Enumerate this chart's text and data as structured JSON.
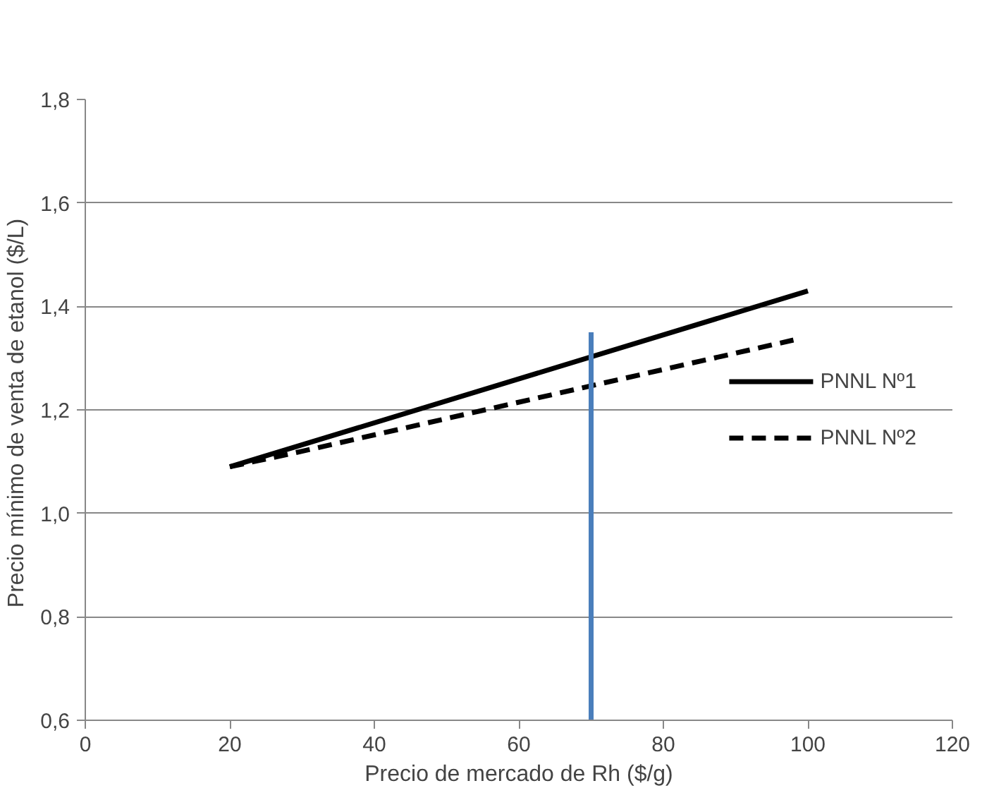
{
  "chart_data": {
    "type": "line",
    "xlabel": "Precio de mercado de Rh ($/g)",
    "ylabel": "Precio mínimo de venta  de etanol ($/L)",
    "xlim": [
      0,
      120
    ],
    "xticks": [
      0,
      20,
      40,
      60,
      80,
      100,
      120
    ],
    "ylim": [
      0.6,
      1.8
    ],
    "yticks": [
      {
        "value": 0.6,
        "label": "0,6"
      },
      {
        "value": 0.8,
        "label": "0,8"
      },
      {
        "value": 1.0,
        "label": "1,0"
      },
      {
        "value": 1.2,
        "label": "1,2"
      },
      {
        "value": 1.4,
        "label": "1,4"
      },
      {
        "value": 1.6,
        "label": "1,6"
      },
      {
        "value": 1.8,
        "label": "1,8"
      }
    ],
    "grid": "y",
    "legend": "right",
    "marker": "none",
    "series": [
      {
        "name": "PNNL Nº1",
        "color": "#000000",
        "line_style": "solid",
        "x": [
          20,
          100
        ],
        "values": [
          1.09,
          1.43
        ]
      },
      {
        "name": "PNNL Nº2",
        "color": "#000000",
        "line_style": "dashed",
        "x": [
          20,
          30,
          98
        ],
        "values": [
          1.09,
          1.12,
          1.335
        ]
      },
      {
        "color": "#4a7ebb",
        "line_style": "solid",
        "x": [
          70,
          70
        ],
        "values": [
          0.6,
          1.35
        ]
      }
    ]
  }
}
